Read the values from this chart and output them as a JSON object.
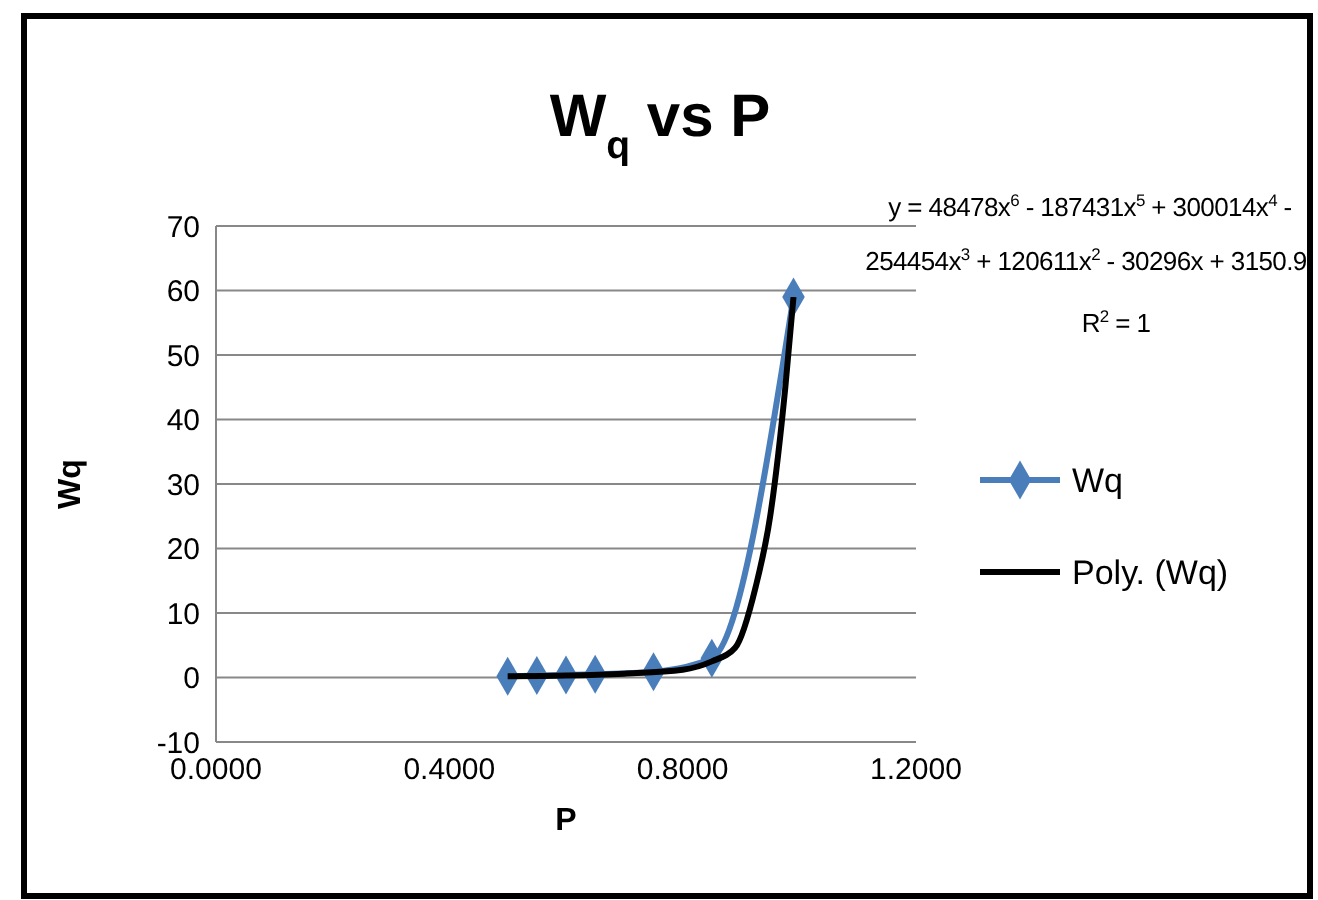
{
  "chart_data": {
    "type": "line",
    "title": "W$_{q}$ vs P",
    "xlabel": "P",
    "ylabel": "Wq",
    "annotations": [
      "y = 48478x$^{6}$ - 187431x$^{5}$ + 300014x$^{4}$ -",
      "254454x$^{3}$ + 120611x$^{2}$ - 30296x + 3150.9",
      "R$^{2}$ = 1"
    ],
    "series": [
      {
        "name": "Wq",
        "color": "#4a7ebb",
        "marker": "diamond",
        "x": [
          0.5,
          0.55,
          0.6,
          0.65,
          0.75,
          0.85,
          0.99
        ],
        "values": [
          0.2,
          0.3,
          0.4,
          0.5,
          0.9,
          3,
          59
        ]
      },
      {
        "name": "Poly. (Wq)",
        "color": "#000000",
        "marker": "none",
        "x": [
          0.5,
          0.6,
          0.7,
          0.8,
          0.85,
          0.89,
          0.925,
          0.95,
          0.976,
          0.99
        ],
        "values": [
          0.2,
          0.3,
          0.6,
          1.2,
          2.5,
          4.6,
          14,
          25,
          45,
          59
        ]
      }
    ],
    "xlim": [
      0,
      1.2
    ],
    "xticks": [
      {
        "value": 0,
        "label": "0.0000"
      },
      {
        "value": 0.4,
        "label": "0.4000"
      },
      {
        "value": 0.8,
        "label": "0.8000"
      },
      {
        "value": 1.2,
        "label": "1.2000"
      }
    ],
    "ylim": [
      -10,
      70
    ],
    "yticks": [
      -10,
      0,
      10,
      20,
      30,
      40,
      50,
      60,
      70
    ],
    "grid": "y",
    "legend": "right",
    "line_style": "solid"
  }
}
